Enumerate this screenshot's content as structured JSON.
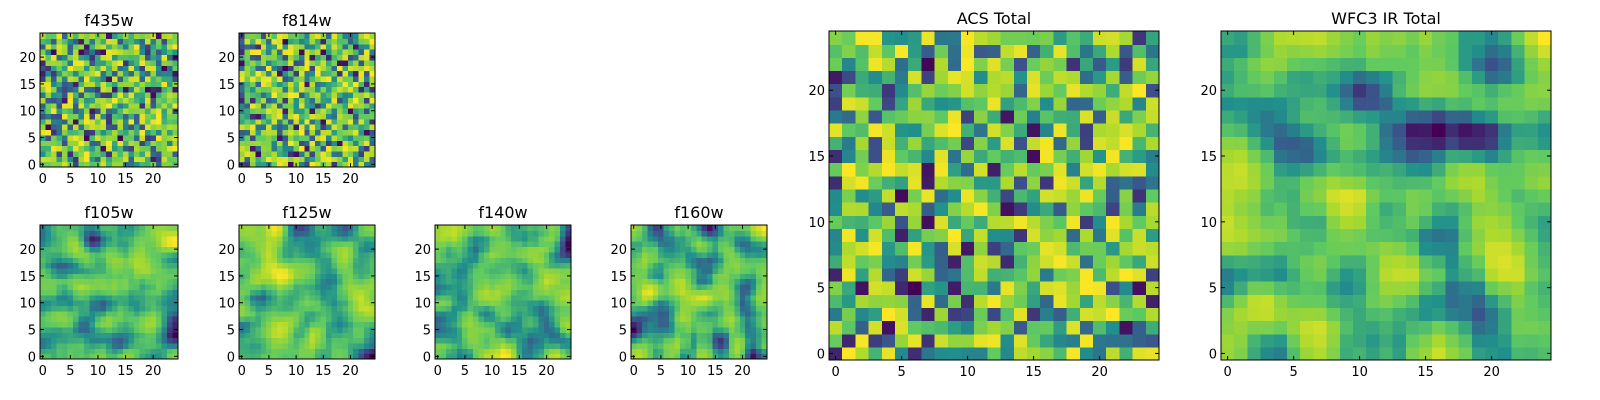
{
  "figure": {
    "colormap": [
      "#440154",
      "#3b528b",
      "#21918c",
      "#5ec962",
      "#a8d92f",
      "#fde725"
    ]
  },
  "chart_data": [
    {
      "type": "heatmap",
      "title": "f435w",
      "grid_size": 25,
      "xticks": [
        0,
        5,
        10,
        15,
        20
      ],
      "yticks": [
        0,
        5,
        10,
        15,
        20
      ],
      "xlim": [
        0,
        25
      ],
      "ylim": [
        0,
        25
      ],
      "texture": "noise",
      "seed": 11
    },
    {
      "type": "heatmap",
      "title": "f814w",
      "grid_size": 25,
      "xticks": [
        0,
        5,
        10,
        15,
        20
      ],
      "yticks": [
        0,
        5,
        10,
        15,
        20
      ],
      "xlim": [
        0,
        25
      ],
      "ylim": [
        0,
        25
      ],
      "texture": "noise",
      "seed": 23
    },
    {
      "type": "heatmap",
      "title": "f105w",
      "grid_size": 25,
      "xticks": [
        0,
        5,
        10,
        15,
        20
      ],
      "yticks": [
        0,
        5,
        10,
        15,
        20
      ],
      "xlim": [
        0,
        25
      ],
      "ylim": [
        0,
        25
      ],
      "texture": "smooth",
      "seed": 37
    },
    {
      "type": "heatmap",
      "title": "f125w",
      "grid_size": 25,
      "xticks": [
        0,
        5,
        10,
        15,
        20
      ],
      "yticks": [
        0,
        5,
        10,
        15,
        20
      ],
      "xlim": [
        0,
        25
      ],
      "ylim": [
        0,
        25
      ],
      "texture": "smooth",
      "seed": 41
    },
    {
      "type": "heatmap",
      "title": "f140w",
      "grid_size": 25,
      "xticks": [
        0,
        5,
        10,
        15,
        20
      ],
      "yticks": [
        0,
        5,
        10,
        15,
        20
      ],
      "xlim": [
        0,
        25
      ],
      "ylim": [
        0,
        25
      ],
      "texture": "smooth",
      "seed": 53
    },
    {
      "type": "heatmap",
      "title": "f160w",
      "grid_size": 25,
      "xticks": [
        0,
        5,
        10,
        15,
        20
      ],
      "yticks": [
        0,
        5,
        10,
        15,
        20
      ],
      "xlim": [
        0,
        25
      ],
      "ylim": [
        0,
        25
      ],
      "texture": "smooth",
      "seed": 67
    },
    {
      "type": "heatmap",
      "title": "ACS Total",
      "grid_size": 25,
      "xticks": [
        0,
        5,
        10,
        15,
        20
      ],
      "yticks": [
        0,
        5,
        10,
        15,
        20
      ],
      "xlim": [
        0,
        25
      ],
      "ylim": [
        0,
        25
      ],
      "texture": "noise",
      "seed": 79
    },
    {
      "type": "heatmap",
      "title": "WFC3 IR Total",
      "grid_size": 25,
      "xticks": [
        0,
        5,
        10,
        15,
        20
      ],
      "yticks": [
        0,
        5,
        10,
        15,
        20
      ],
      "xlim": [
        0,
        25
      ],
      "ylim": [
        0,
        25
      ],
      "texture": "smooth",
      "seed": 97
    }
  ]
}
